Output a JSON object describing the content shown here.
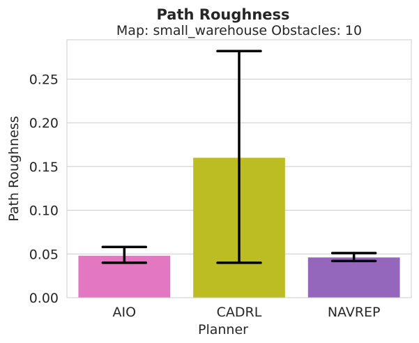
{
  "chart_data": {
    "type": "bar",
    "title": "Path Roughness",
    "subtitle": "Map: small_warehouse Obstacles: 10",
    "xlabel": "Planner",
    "ylabel": "Path Roughness",
    "categories": [
      "AIO",
      "CADRL",
      "NAVREP"
    ],
    "values": [
      0.048,
      0.16,
      0.046
    ],
    "error_low": [
      0.04,
      0.04,
      0.042
    ],
    "error_high": [
      0.058,
      0.282,
      0.051
    ],
    "colors": [
      "#e377c2",
      "#bcbd22",
      "#9467bd"
    ],
    "ylim": [
      0,
      0.295
    ],
    "yticks": [
      0.0,
      0.05,
      0.1,
      0.15,
      0.2,
      0.25
    ],
    "ytick_labels": [
      "0.00",
      "0.05",
      "0.10",
      "0.15",
      "0.20",
      "0.25"
    ],
    "grid": "horizontal",
    "legend": "none"
  }
}
